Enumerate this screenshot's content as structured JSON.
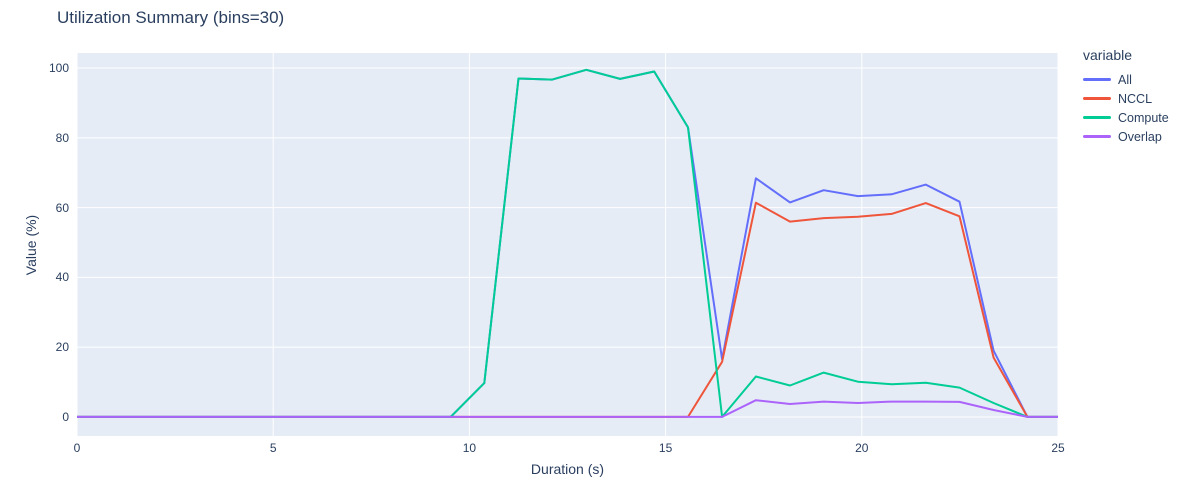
{
  "title": "Utilization Summary (bins=30)",
  "chart_data": {
    "type": "line",
    "title": "Utilization Summary (bins=30)",
    "xlabel": "Duration (s)",
    "ylabel": "Value (%)",
    "legend_title": "variable",
    "legend_position": "right",
    "grid": true,
    "x_range": [
      0,
      25
    ],
    "y_range": [
      -5.46,
      104.31
    ],
    "x_ticks": [
      0,
      5,
      10,
      15,
      20,
      25
    ],
    "y_ticks": [
      0,
      20,
      40,
      60,
      80,
      100
    ],
    "plot_bg_color": "#e5ecf6",
    "grid_color": "#ffffff",
    "text_color": "#2a3f5f",
    "x": [
      0,
      0.87,
      1.73,
      2.6,
      3.46,
      4.33,
      5.19,
      6.06,
      6.92,
      7.79,
      8.65,
      9.52,
      10.38,
      11.25,
      12.11,
      12.98,
      13.84,
      14.71,
      15.57,
      16.44,
      17.3,
      18.17,
      19.03,
      19.9,
      20.76,
      21.63,
      22.49,
      23.36,
      24.22,
      25.0
    ],
    "series": [
      {
        "name": "All",
        "color": "#636efa",
        "values": [
          0,
          0,
          0,
          0,
          0,
          0,
          0,
          0,
          0,
          0,
          0,
          0,
          9.7,
          97,
          96.7,
          99.5,
          96.9,
          99,
          83,
          16.5,
          68.4,
          61.5,
          65,
          63.3,
          63.8,
          66.6,
          61.7,
          19,
          0,
          0
        ]
      },
      {
        "name": "NCCL",
        "color": "#ef553b",
        "values": [
          0,
          0,
          0,
          0,
          0,
          0,
          0,
          0,
          0,
          0,
          0,
          0,
          0,
          0,
          0,
          0,
          0,
          0,
          0,
          15.8,
          61.4,
          56,
          57,
          57.4,
          58.2,
          61.3,
          57.5,
          17,
          0,
          0
        ]
      },
      {
        "name": "Compute",
        "color": "#00cc96",
        "values": [
          0,
          0,
          0,
          0,
          0,
          0,
          0,
          0,
          0,
          0,
          0,
          0,
          9.7,
          97,
          96.7,
          99.5,
          96.9,
          99,
          83,
          0,
          11.6,
          9,
          12.7,
          10.1,
          9.4,
          9.8,
          8.4,
          4,
          0,
          0
        ]
      },
      {
        "name": "Overlap",
        "color": "#ab63fa",
        "values": [
          0,
          0,
          0,
          0,
          0,
          0,
          0,
          0,
          0,
          0,
          0,
          0,
          0,
          0,
          0,
          0,
          0,
          0,
          0,
          0,
          4.8,
          3.7,
          4.4,
          4,
          4.4,
          4.4,
          4.3,
          2,
          0,
          0
        ]
      }
    ]
  }
}
